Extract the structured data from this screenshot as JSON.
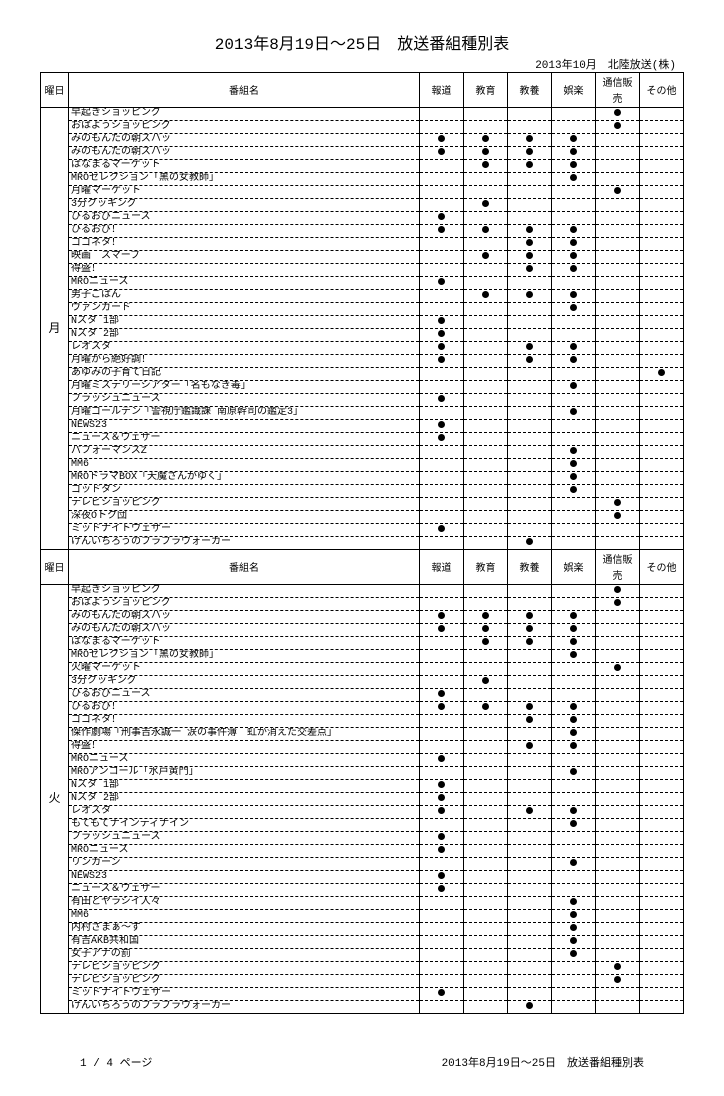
{
  "title": "2013年8月19日～25日　放送番組種別表",
  "subtitle": "2013年10月　北陸放送(株)",
  "columns": {
    "day": "曜日",
    "name": "番組名",
    "cat1": "報道",
    "cat2": "教育",
    "cat3": "教養",
    "cat4": "娯楽",
    "cat5": "通信販売",
    "cat6": "その他"
  },
  "footer_left": "1 / 4 ページ",
  "footer_right": "2013年8月19日～25日　放送番組種別表",
  "sections": [
    {
      "day": "月",
      "rows": [
        {
          "name": "早起きショッピング",
          "dots": [
            0,
            0,
            0,
            0,
            1,
            0
          ]
        },
        {
          "name": "おはようショッピング",
          "dots": [
            0,
            0,
            0,
            0,
            1,
            0
          ]
        },
        {
          "name": "みのもんたの朝ズバッ",
          "dots": [
            1,
            1,
            1,
            1,
            0,
            0
          ]
        },
        {
          "name": "みのもんたの朝ズバッ",
          "dots": [
            1,
            1,
            1,
            1,
            0,
            0
          ]
        },
        {
          "name": "はなまるマーケット",
          "dots": [
            0,
            1,
            1,
            1,
            0,
            0
          ]
        },
        {
          "name": "MROセレクション「黒の女教師」",
          "dots": [
            0,
            0,
            0,
            1,
            0,
            0
          ]
        },
        {
          "name": "月曜マーケット",
          "dots": [
            0,
            0,
            0,
            0,
            1,
            0
          ]
        },
        {
          "name": "3分クッキング",
          "dots": [
            0,
            1,
            0,
            0,
            0,
            0
          ]
        },
        {
          "name": "ひるおびニュース",
          "dots": [
            1,
            0,
            0,
            0,
            0,
            0
          ]
        },
        {
          "name": "ひるおび！",
          "dots": [
            1,
            1,
            1,
            1,
            0,
            0
          ]
        },
        {
          "name": "ゴゴネタ！",
          "dots": [
            0,
            0,
            1,
            1,
            0,
            0
          ]
        },
        {
          "name": "映画　スマーブ",
          "dots": [
            0,
            1,
            1,
            1,
            0,
            0
          ]
        },
        {
          "name": "得盛！",
          "dots": [
            0,
            0,
            1,
            1,
            0,
            0
          ]
        },
        {
          "name": "MROニュース",
          "dots": [
            1,
            0,
            0,
            0,
            0,
            0
          ]
        },
        {
          "name": "男子ごはん",
          "dots": [
            0,
            1,
            1,
            1,
            0,
            0
          ]
        },
        {
          "name": "ヴァンガード",
          "dots": [
            0,
            0,
            0,
            1,
            0,
            0
          ]
        },
        {
          "name": "Nスタ 1部",
          "dots": [
            1,
            0,
            0,
            0,
            0,
            0
          ]
        },
        {
          "name": "Nスタ 2部",
          "dots": [
            1,
            0,
            0,
            0,
            0,
            0
          ]
        },
        {
          "name": "レオスタ",
          "dots": [
            1,
            0,
            1,
            1,
            0,
            0
          ]
        },
        {
          "name": "月曜から絶好調！",
          "dots": [
            1,
            0,
            1,
            1,
            0,
            0
          ]
        },
        {
          "name": "あゆみの子育て日記",
          "dots": [
            0,
            0,
            0,
            0,
            0,
            1
          ]
        },
        {
          "name": "月曜ミステリーシアター「名もなき毒」",
          "dots": [
            0,
            0,
            0,
            1,
            0,
            0
          ]
        },
        {
          "name": "フラッシュニュース",
          "dots": [
            1,
            0,
            0,
            0,
            0,
            0
          ]
        },
        {
          "name": "月曜ゴールデン「警視庁鑑識課 南原幹司の鑑定3」",
          "dots": [
            0,
            0,
            0,
            1,
            0,
            0
          ]
        },
        {
          "name": "NEWS23",
          "dots": [
            1,
            0,
            0,
            0,
            0,
            0
          ]
        },
        {
          "name": "ニュース＆ウェザー",
          "dots": [
            1,
            0,
            0,
            0,
            0,
            0
          ]
        },
        {
          "name": "パフォーマンスZ",
          "dots": [
            0,
            0,
            0,
            1,
            0,
            0
          ]
        },
        {
          "name": "MM6",
          "dots": [
            0,
            0,
            0,
            1,
            0,
            0
          ]
        },
        {
          "name": "MROドラマBOX「天魔さんがゆく」",
          "dots": [
            0,
            0,
            0,
            1,
            0,
            0
          ]
        },
        {
          "name": "ゴッドタン",
          "dots": [
            0,
            0,
            0,
            1,
            0,
            0
          ]
        },
        {
          "name": "テレビショッピング",
          "dots": [
            0,
            0,
            0,
            0,
            1,
            0
          ]
        },
        {
          "name": "深夜Oトク団",
          "dots": [
            0,
            0,
            0,
            0,
            1,
            0
          ]
        },
        {
          "name": "ミッドナイトウェザー",
          "dots": [
            1,
            0,
            0,
            0,
            0,
            0
          ]
        },
        {
          "name": "けんいちろうのブラブラウォーカー",
          "dots": [
            0,
            0,
            1,
            0,
            0,
            0
          ]
        }
      ]
    },
    {
      "day": "火",
      "rows": [
        {
          "name": "早起きショッピング",
          "dots": [
            0,
            0,
            0,
            0,
            1,
            0
          ]
        },
        {
          "name": "おはようショッピング",
          "dots": [
            0,
            0,
            0,
            0,
            1,
            0
          ]
        },
        {
          "name": "みのもんたの朝ズバッ",
          "dots": [
            1,
            1,
            1,
            1,
            0,
            0
          ]
        },
        {
          "name": "みのもんたの朝ズバッ",
          "dots": [
            1,
            1,
            1,
            1,
            0,
            0
          ]
        },
        {
          "name": "はなまるマーケット",
          "dots": [
            0,
            1,
            1,
            1,
            0,
            0
          ]
        },
        {
          "name": "MROセレクション「黒の女教師」",
          "dots": [
            0,
            0,
            0,
            1,
            0,
            0
          ]
        },
        {
          "name": "火曜マーケット",
          "dots": [
            0,
            0,
            0,
            0,
            1,
            0
          ]
        },
        {
          "name": "3分クッキング",
          "dots": [
            0,
            1,
            0,
            0,
            0,
            0
          ]
        },
        {
          "name": "ひるおびニュース",
          "dots": [
            1,
            0,
            0,
            0,
            0,
            0
          ]
        },
        {
          "name": "ひるおび！",
          "dots": [
            1,
            1,
            1,
            1,
            0,
            0
          ]
        },
        {
          "name": "ゴゴネタ！",
          "dots": [
            0,
            0,
            1,
            1,
            0,
            0
          ]
        },
        {
          "name": "傑作劇場「刑事吉永誠一 涙の事件簿　虹が消えた交差点」",
          "dots": [
            0,
            0,
            0,
            1,
            0,
            0
          ]
        },
        {
          "name": "得盛！",
          "dots": [
            0,
            0,
            1,
            1,
            0,
            0
          ]
        },
        {
          "name": "MROニュース",
          "dots": [
            1,
            0,
            0,
            0,
            0,
            0
          ]
        },
        {
          "name": "MROアンコール「水戸黄門」",
          "dots": [
            0,
            0,
            0,
            1,
            0,
            0
          ]
        },
        {
          "name": "Nスタ 1部",
          "dots": [
            1,
            0,
            0,
            0,
            0,
            0
          ]
        },
        {
          "name": "Nスタ 2部",
          "dots": [
            1,
            0,
            0,
            0,
            0,
            0
          ]
        },
        {
          "name": "レオスタ",
          "dots": [
            1,
            0,
            1,
            1,
            0,
            0
          ]
        },
        {
          "name": "もてもてナインティナイン",
          "dots": [
            0,
            0,
            0,
            1,
            0,
            0
          ]
        },
        {
          "name": "フラッシュニュース",
          "dots": [
            1,
            0,
            0,
            0,
            0,
            0
          ]
        },
        {
          "name": "MROニュース",
          "dots": [
            1,
            0,
            0,
            0,
            0,
            0
          ]
        },
        {
          "name": "リンカーン",
          "dots": [
            0,
            0,
            0,
            1,
            0,
            0
          ]
        },
        {
          "name": "NEWS23",
          "dots": [
            1,
            0,
            0,
            0,
            0,
            0
          ]
        },
        {
          "name": "ニュース＆ウェザー",
          "dots": [
            1,
            0,
            0,
            0,
            0,
            0
          ]
        },
        {
          "name": "有田とヤラシイ人々",
          "dots": [
            0,
            0,
            0,
            1,
            0,
            0
          ]
        },
        {
          "name": "MM6",
          "dots": [
            0,
            0,
            0,
            1,
            0,
            0
          ]
        },
        {
          "name": "内村さまぁ～ず",
          "dots": [
            0,
            0,
            0,
            1,
            0,
            0
          ]
        },
        {
          "name": "有吉AKB共和国",
          "dots": [
            0,
            0,
            0,
            1,
            0,
            0
          ]
        },
        {
          "name": "女子アナの罰",
          "dots": [
            0,
            0,
            0,
            1,
            0,
            0
          ]
        },
        {
          "name": "テレビショッピング",
          "dots": [
            0,
            0,
            0,
            0,
            1,
            0
          ]
        },
        {
          "name": "テレビショッピング",
          "dots": [
            0,
            0,
            0,
            0,
            1,
            0
          ]
        },
        {
          "name": "ミッドナイトウェザー",
          "dots": [
            1,
            0,
            0,
            0,
            0,
            0
          ]
        },
        {
          "name": "けんいちろうのブラブラウォーカー",
          "dots": [
            0,
            0,
            1,
            0,
            0,
            0
          ]
        }
      ]
    }
  ]
}
